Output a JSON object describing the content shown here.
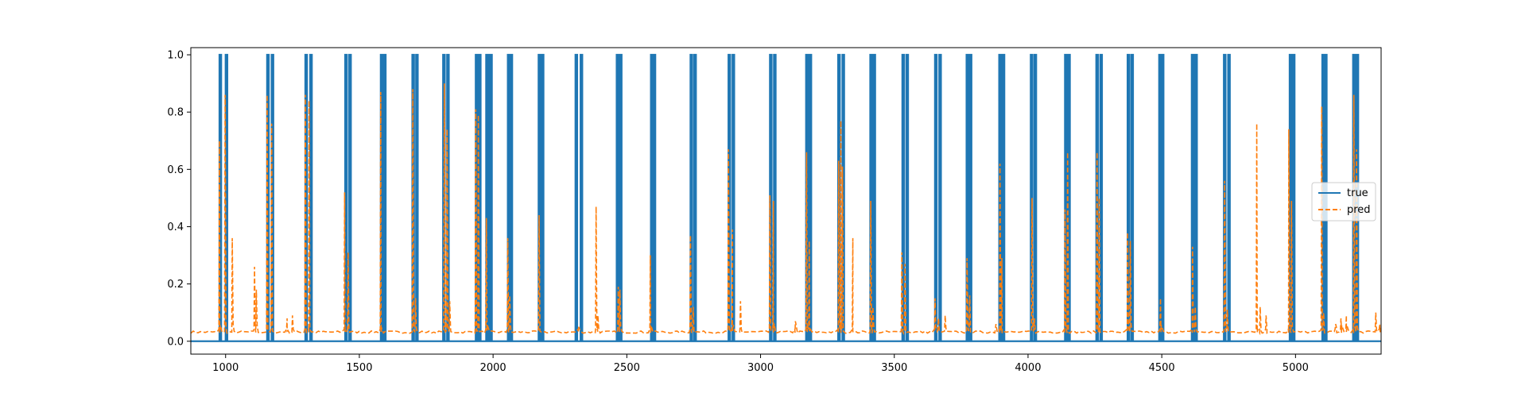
{
  "chart_data": {
    "type": "line",
    "title": "",
    "xlabel": "",
    "ylabel": "",
    "xlim": [
      870,
      5320
    ],
    "ylim": [
      -0.045,
      1.025
    ],
    "x_ticks": [
      1000,
      1500,
      2000,
      2500,
      3000,
      3500,
      4000,
      4500,
      5000
    ],
    "y_ticks": [
      0.0,
      0.2,
      0.4,
      0.6,
      0.8,
      1.0
    ],
    "x_tick_labels": [
      "1000",
      "1500",
      "2000",
      "2500",
      "3000",
      "3500",
      "4000",
      "4500",
      "5000"
    ],
    "y_tick_labels": [
      "0.0",
      "0.2",
      "0.4",
      "0.6",
      "0.8",
      "1.0"
    ],
    "grid": false,
    "legend_position": "center-right",
    "baseline": 0.032,
    "series": [
      {
        "name": "true",
        "style": "solid",
        "color": "#1f77b4",
        "spike_x": [
          977,
          1000,
          1155,
          1172,
          1298,
          1316,
          1447,
          1462,
          1580,
          1592,
          1698,
          1712,
          1813,
          1828,
          1935,
          1947,
          1974,
          1979,
          1984,
          1989,
          2055,
          2065,
          2170,
          2182,
          2308,
          2327,
          2462,
          2474,
          2590,
          2600,
          2738,
          2752,
          2880,
          2895,
          3035,
          3050,
          3170,
          3183,
          3290,
          3306,
          3410,
          3422,
          3530,
          3545,
          3652,
          3668,
          3770,
          3782,
          3892,
          3905,
          4010,
          4024,
          4138,
          4150,
          4255,
          4270,
          4372,
          4386,
          4490,
          4500,
          4612,
          4625,
          4732,
          4748,
          4978,
          4990,
          5100,
          5110,
          5215,
          5228
        ]
      },
      {
        "name": "pred",
        "style": "dashed",
        "color": "#ff7f0e",
        "peaks": [
          {
            "x": 977,
            "y": 0.7
          },
          {
            "x": 998,
            "y": 0.86
          },
          {
            "x": 1025,
            "y": 0.36
          },
          {
            "x": 1108,
            "y": 0.26
          },
          {
            "x": 1115,
            "y": 0.18
          },
          {
            "x": 1155,
            "y": 0.86
          },
          {
            "x": 1172,
            "y": 0.76
          },
          {
            "x": 1230,
            "y": 0.08
          },
          {
            "x": 1250,
            "y": 0.09
          },
          {
            "x": 1298,
            "y": 0.86
          },
          {
            "x": 1312,
            "y": 0.84
          },
          {
            "x": 1445,
            "y": 0.52
          },
          {
            "x": 1458,
            "y": 0.31
          },
          {
            "x": 1580,
            "y": 0.87
          },
          {
            "x": 1700,
            "y": 0.88
          },
          {
            "x": 1710,
            "y": 0.15
          },
          {
            "x": 1818,
            "y": 0.9
          },
          {
            "x": 1828,
            "y": 0.74
          },
          {
            "x": 1838,
            "y": 0.14
          },
          {
            "x": 1935,
            "y": 0.81
          },
          {
            "x": 1945,
            "y": 0.79
          },
          {
            "x": 1975,
            "y": 0.43
          },
          {
            "x": 2055,
            "y": 0.36
          },
          {
            "x": 2062,
            "y": 0.16
          },
          {
            "x": 2172,
            "y": 0.44
          },
          {
            "x": 2320,
            "y": 0.05
          },
          {
            "x": 2385,
            "y": 0.47
          },
          {
            "x": 2392,
            "y": 0.09
          },
          {
            "x": 2468,
            "y": 0.19
          },
          {
            "x": 2474,
            "y": 0.18
          },
          {
            "x": 2588,
            "y": 0.3
          },
          {
            "x": 2738,
            "y": 0.37
          },
          {
            "x": 2748,
            "y": 0.12
          },
          {
            "x": 2880,
            "y": 0.67
          },
          {
            "x": 2895,
            "y": 0.39
          },
          {
            "x": 2925,
            "y": 0.14
          },
          {
            "x": 3035,
            "y": 0.51
          },
          {
            "x": 3048,
            "y": 0.49
          },
          {
            "x": 3130,
            "y": 0.07
          },
          {
            "x": 3172,
            "y": 0.66
          },
          {
            "x": 3182,
            "y": 0.35
          },
          {
            "x": 3292,
            "y": 0.63
          },
          {
            "x": 3300,
            "y": 0.77
          },
          {
            "x": 3306,
            "y": 0.61
          },
          {
            "x": 3345,
            "y": 0.36
          },
          {
            "x": 3412,
            "y": 0.49
          },
          {
            "x": 3420,
            "y": 0.12
          },
          {
            "x": 3528,
            "y": 0.31
          },
          {
            "x": 3540,
            "y": 0.27
          },
          {
            "x": 3652,
            "y": 0.15
          },
          {
            "x": 3665,
            "y": 0.08
          },
          {
            "x": 3690,
            "y": 0.09
          },
          {
            "x": 3772,
            "y": 0.29
          },
          {
            "x": 3782,
            "y": 0.16
          },
          {
            "x": 3880,
            "y": 0.06
          },
          {
            "x": 3895,
            "y": 0.62
          },
          {
            "x": 3902,
            "y": 0.29
          },
          {
            "x": 4015,
            "y": 0.5
          },
          {
            "x": 4024,
            "y": 0.08
          },
          {
            "x": 4138,
            "y": 0.46
          },
          {
            "x": 4148,
            "y": 0.66
          },
          {
            "x": 4258,
            "y": 0.66
          },
          {
            "x": 4266,
            "y": 0.5
          },
          {
            "x": 4372,
            "y": 0.38
          },
          {
            "x": 4382,
            "y": 0.35
          },
          {
            "x": 4495,
            "y": 0.15
          },
          {
            "x": 4615,
            "y": 0.33
          },
          {
            "x": 4625,
            "y": 0.12
          },
          {
            "x": 4735,
            "y": 0.56
          },
          {
            "x": 4745,
            "y": 0.11
          },
          {
            "x": 4855,
            "y": 0.76
          },
          {
            "x": 4868,
            "y": 0.12
          },
          {
            "x": 4890,
            "y": 0.09
          },
          {
            "x": 4975,
            "y": 0.74
          },
          {
            "x": 4985,
            "y": 0.49
          },
          {
            "x": 5098,
            "y": 0.82
          },
          {
            "x": 5105,
            "y": 0.1
          },
          {
            "x": 5150,
            "y": 0.06
          },
          {
            "x": 5170,
            "y": 0.08
          },
          {
            "x": 5190,
            "y": 0.09
          },
          {
            "x": 5218,
            "y": 0.86
          },
          {
            "x": 5228,
            "y": 0.67
          },
          {
            "x": 5300,
            "y": 0.1
          },
          {
            "x": 5315,
            "y": 0.06
          }
        ]
      }
    ]
  }
}
